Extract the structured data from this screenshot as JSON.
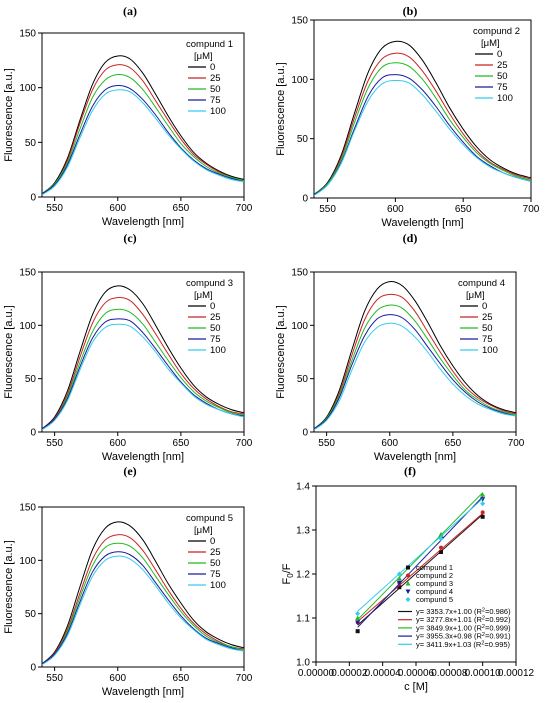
{
  "figure": {
    "panel_labels": [
      "(a)",
      "(b)",
      "(c)",
      "(d)",
      "(e)",
      "(f)"
    ]
  },
  "chart_data": [
    {
      "type": "line",
      "panel": "(a)",
      "xlabel": "Wavelength [nm]",
      "ylabel": "Fluorescence [a.u.]",
      "xlim": [
        540,
        700
      ],
      "ylim": [
        0,
        150
      ],
      "xticks": [
        550,
        600,
        650,
        700
      ],
      "yticks": [
        0,
        50,
        100,
        150
      ],
      "legend_title": [
        "compund 1",
        "[μM]"
      ],
      "legend_position": "top-right",
      "peak_x": 603,
      "x": [
        540,
        550,
        560,
        570,
        580,
        590,
        600,
        610,
        620,
        630,
        640,
        650,
        660,
        670,
        680,
        690,
        700
      ],
      "series": [
        {
          "name": "0",
          "color": "#000000",
          "values": [
            3,
            13,
            35,
            70,
            103,
            123,
            129,
            126,
            113,
            94,
            74,
            56,
            41,
            31,
            24,
            19,
            16
          ]
        },
        {
          "name": "25",
          "color": "#cc2222",
          "values": [
            3,
            12,
            33,
            67,
            98,
            116,
            121,
            118,
            106,
            88,
            70,
            53,
            39,
            30,
            23,
            18,
            15
          ]
        },
        {
          "name": "50",
          "color": "#22bb22",
          "values": [
            3,
            12,
            31,
            62,
            91,
            107,
            112,
            109,
            98,
            82,
            65,
            49,
            37,
            28,
            22,
            18,
            15
          ]
        },
        {
          "name": "75",
          "color": "#1a1aa0",
          "values": [
            3,
            11,
            29,
            57,
            83,
            98,
            102,
            99,
            89,
            75,
            59,
            45,
            34,
            26,
            21,
            17,
            14
          ]
        },
        {
          "name": "100",
          "color": "#33ccee",
          "values": [
            2,
            10,
            27,
            54,
            79,
            94,
            98,
            96,
            86,
            72,
            57,
            44,
            33,
            25,
            20,
            16,
            14
          ]
        }
      ]
    },
    {
      "type": "line",
      "panel": "(b)",
      "xlabel": "Wavelength [nm]",
      "ylabel": "Fluorescence [a.u.]",
      "xlim": [
        540,
        700
      ],
      "ylim": [
        0,
        150
      ],
      "xticks": [
        550,
        600,
        650,
        700
      ],
      "yticks": [
        0,
        50,
        100,
        150
      ],
      "legend_title": [
        "compund 2",
        "[μM]"
      ],
      "legend_position": "top-right",
      "x": [
        540,
        550,
        560,
        570,
        580,
        590,
        600,
        610,
        620,
        630,
        640,
        650,
        660,
        670,
        680,
        690,
        700
      ],
      "series": [
        {
          "name": "0",
          "color": "#000000",
          "values": [
            3,
            13,
            36,
            72,
            106,
            126,
            132,
            129,
            116,
            97,
            76,
            58,
            43,
            32,
            25,
            20,
            17
          ]
        },
        {
          "name": "25",
          "color": "#cc2222",
          "values": [
            3,
            12,
            34,
            68,
            99,
            117,
            122,
            119,
            107,
            90,
            71,
            54,
            40,
            30,
            24,
            19,
            16
          ]
        },
        {
          "name": "50",
          "color": "#22bb22",
          "values": [
            3,
            12,
            32,
            64,
            93,
            110,
            114,
            111,
            100,
            84,
            66,
            51,
            38,
            29,
            23,
            18,
            15
          ]
        },
        {
          "name": "75",
          "color": "#1a1aa0",
          "values": [
            3,
            11,
            30,
            59,
            86,
            101,
            104,
            101,
            91,
            77,
            61,
            47,
            35,
            27,
            21,
            17,
            14
          ]
        },
        {
          "name": "100",
          "color": "#33ccee",
          "values": [
            2,
            11,
            29,
            57,
            82,
            96,
            99,
            97,
            87,
            73,
            58,
            45,
            34,
            26,
            21,
            17,
            14
          ]
        }
      ]
    },
    {
      "type": "line",
      "panel": "(c)",
      "xlabel": "Wavelength [nm]",
      "ylabel": "Fluorescence [a.u.]",
      "xlim": [
        540,
        700
      ],
      "ylim": [
        0,
        150
      ],
      "xticks": [
        550,
        600,
        650,
        700
      ],
      "yticks": [
        0,
        50,
        100,
        150
      ],
      "legend_title": [
        "compund 3",
        "[μM]"
      ],
      "legend_position": "top-right",
      "x": [
        540,
        550,
        560,
        570,
        580,
        590,
        600,
        610,
        620,
        630,
        640,
        650,
        660,
        670,
        680,
        690,
        700
      ],
      "series": [
        {
          "name": "0",
          "color": "#000000",
          "values": [
            3,
            14,
            38,
            75,
            110,
            131,
            137,
            133,
            120,
            100,
            79,
            60,
            44,
            33,
            26,
            21,
            18
          ]
        },
        {
          "name": "25",
          "color": "#cc2222",
          "values": [
            3,
            13,
            35,
            70,
            102,
            121,
            126,
            123,
            110,
            92,
            73,
            55,
            41,
            31,
            24,
            19,
            17
          ]
        },
        {
          "name": "50",
          "color": "#22bb22",
          "values": [
            3,
            12,
            33,
            65,
            94,
            111,
            115,
            112,
            101,
            84,
            67,
            51,
            38,
            29,
            23,
            18,
            16
          ]
        },
        {
          "name": "75",
          "color": "#1a1aa0",
          "values": [
            3,
            12,
            31,
            61,
            88,
            103,
            106,
            104,
            93,
            78,
            62,
            47,
            35,
            27,
            21,
            17,
            15
          ]
        },
        {
          "name": "100",
          "color": "#33ccee",
          "values": [
            2,
            11,
            29,
            58,
            84,
            98,
            101,
            99,
            89,
            75,
            59,
            46,
            34,
            26,
            21,
            17,
            14
          ]
        }
      ]
    },
    {
      "type": "line",
      "panel": "(d)",
      "xlabel": "Wavelength [nm]",
      "ylabel": "Fluorescence [a.u.]",
      "xlim": [
        540,
        700
      ],
      "ylim": [
        0,
        150
      ],
      "xticks": [
        550,
        600,
        650,
        700
      ],
      "yticks": [
        0,
        50,
        100,
        150
      ],
      "legend_title": [
        "compund 4",
        "[μM]"
      ],
      "legend_position": "top-right",
      "x": [
        540,
        550,
        560,
        570,
        580,
        590,
        600,
        610,
        620,
        630,
        640,
        650,
        660,
        670,
        680,
        690,
        700
      ],
      "series": [
        {
          "name": "0",
          "color": "#000000",
          "values": [
            3,
            14,
            39,
            77,
            113,
            134,
            141,
            137,
            123,
            103,
            81,
            62,
            46,
            34,
            26,
            21,
            18
          ]
        },
        {
          "name": "25",
          "color": "#cc2222",
          "values": [
            3,
            13,
            36,
            72,
            105,
            124,
            129,
            126,
            113,
            94,
            75,
            57,
            42,
            32,
            25,
            20,
            17
          ]
        },
        {
          "name": "50",
          "color": "#22bb22",
          "values": [
            3,
            13,
            34,
            67,
            97,
            114,
            119,
            116,
            104,
            87,
            69,
            53,
            39,
            30,
            23,
            19,
            16
          ]
        },
        {
          "name": "75",
          "color": "#1a1aa0",
          "values": [
            3,
            12,
            32,
            63,
            90,
            106,
            110,
            107,
            96,
            80,
            64,
            49,
            37,
            28,
            22,
            18,
            15
          ]
        },
        {
          "name": "100",
          "color": "#33ccee",
          "values": [
            2,
            11,
            29,
            58,
            84,
            98,
            102,
            99,
            89,
            75,
            59,
            45,
            34,
            26,
            21,
            17,
            15
          ]
        }
      ]
    },
    {
      "type": "line",
      "panel": "(e)",
      "xlabel": "Wavelength [nm]",
      "ylabel": "Fluorescence [a.u.]",
      "xlim": [
        540,
        700
      ],
      "ylim": [
        0,
        150
      ],
      "xticks": [
        550,
        600,
        650,
        700
      ],
      "yticks": [
        0,
        50,
        100,
        150
      ],
      "legend_title": [
        "compund 5",
        "[μM]"
      ],
      "legend_position": "top-right",
      "x": [
        540,
        550,
        560,
        570,
        580,
        590,
        600,
        610,
        620,
        630,
        640,
        650,
        660,
        670,
        680,
        690,
        700
      ],
      "series": [
        {
          "name": "0",
          "color": "#000000",
          "values": [
            3,
            14,
            38,
            75,
            110,
            130,
            136,
            132,
            119,
            99,
            78,
            60,
            44,
            33,
            26,
            21,
            18
          ]
        },
        {
          "name": "25",
          "color": "#cc2222",
          "values": [
            3,
            13,
            35,
            69,
            101,
            119,
            124,
            121,
            109,
            91,
            72,
            55,
            41,
            31,
            24,
            19,
            17
          ]
        },
        {
          "name": "50",
          "color": "#22bb22",
          "values": [
            3,
            12,
            33,
            65,
            95,
            112,
            116,
            113,
            102,
            85,
            68,
            52,
            39,
            29,
            23,
            19,
            16
          ]
        },
        {
          "name": "75",
          "color": "#1a1aa0",
          "values": [
            3,
            12,
            31,
            61,
            89,
            104,
            108,
            105,
            95,
            79,
            63,
            48,
            36,
            27,
            22,
            18,
            15
          ]
        },
        {
          "name": "100",
          "color": "#33ccee",
          "values": [
            2,
            11,
            29,
            58,
            85,
            100,
            104,
            101,
            91,
            76,
            60,
            46,
            35,
            26,
            21,
            17,
            15
          ]
        }
      ]
    },
    {
      "type": "scatter",
      "panel": "(f)",
      "xlabel": "c [M]",
      "ylabel": "F0/F",
      "ylabel_main": "F",
      "ylabel_sub": "0",
      "ylabel_rest": "/F",
      "xlim": [
        0,
        0.00012
      ],
      "ylim": [
        1.0,
        1.4
      ],
      "xticks": [
        0,
        2e-05,
        4e-05,
        6e-05,
        8e-05,
        0.0001,
        0.00012
      ],
      "xtick_labels": [
        "0.00000",
        "0.00002",
        "0.00004",
        "0.00006",
        "0.00008",
        "0.00010",
        "0.00012"
      ],
      "yticks": [
        1.0,
        1.1,
        1.2,
        1.3,
        1.4
      ],
      "ytick_labels": [
        "1.0",
        "1.1",
        "1.2",
        "1.3",
        "1.4"
      ],
      "legend_position": "bottom-right",
      "x": [
        2.5e-05,
        5e-05,
        7.5e-05,
        0.0001
      ],
      "series": [
        {
          "name": "compund 1",
          "color": "#111111",
          "marker": "square",
          "values": [
            1.07,
            1.17,
            1.25,
            1.33
          ],
          "slope": 3353.7,
          "intercept": 1.0,
          "fit_label": "y= 3353.7x+1.00 (R",
          "fit_r2": "=0.986)"
        },
        {
          "name": "compund 2",
          "color": "#cc2222",
          "marker": "circle",
          "values": [
            1.09,
            1.18,
            1.26,
            1.34
          ],
          "slope": 3277.8,
          "intercept": 1.01,
          "fit_label": "y= 3277.8x+1.01 (R",
          "fit_r2": "=0.992)"
        },
        {
          "name": "compund 3",
          "color": "#22bb22",
          "marker": "triangle",
          "values": [
            1.1,
            1.19,
            1.29,
            1.38
          ],
          "slope": 3849.9,
          "intercept": 1.0,
          "fit_label": "y= 3849.9x+1.00 (R",
          "fit_r2": "=0.999)"
        },
        {
          "name": "compund 4",
          "color": "#1a1aa0",
          "marker": "triangle-down",
          "values": [
            1.09,
            1.18,
            1.28,
            1.37
          ],
          "slope": 3955.3,
          "intercept": 0.98,
          "fit_label": "y= 3955.3x+0.98 (R",
          "fit_r2": "=0.991)"
        },
        {
          "name": "compund 5",
          "color": "#33ccee",
          "marker": "diamond",
          "values": [
            1.11,
            1.2,
            1.28,
            1.36
          ],
          "slope": 3411.9,
          "intercept": 1.03,
          "fit_label": "y= 3411.9x+1.03 (R",
          "fit_r2": "=0.995)"
        }
      ]
    }
  ]
}
